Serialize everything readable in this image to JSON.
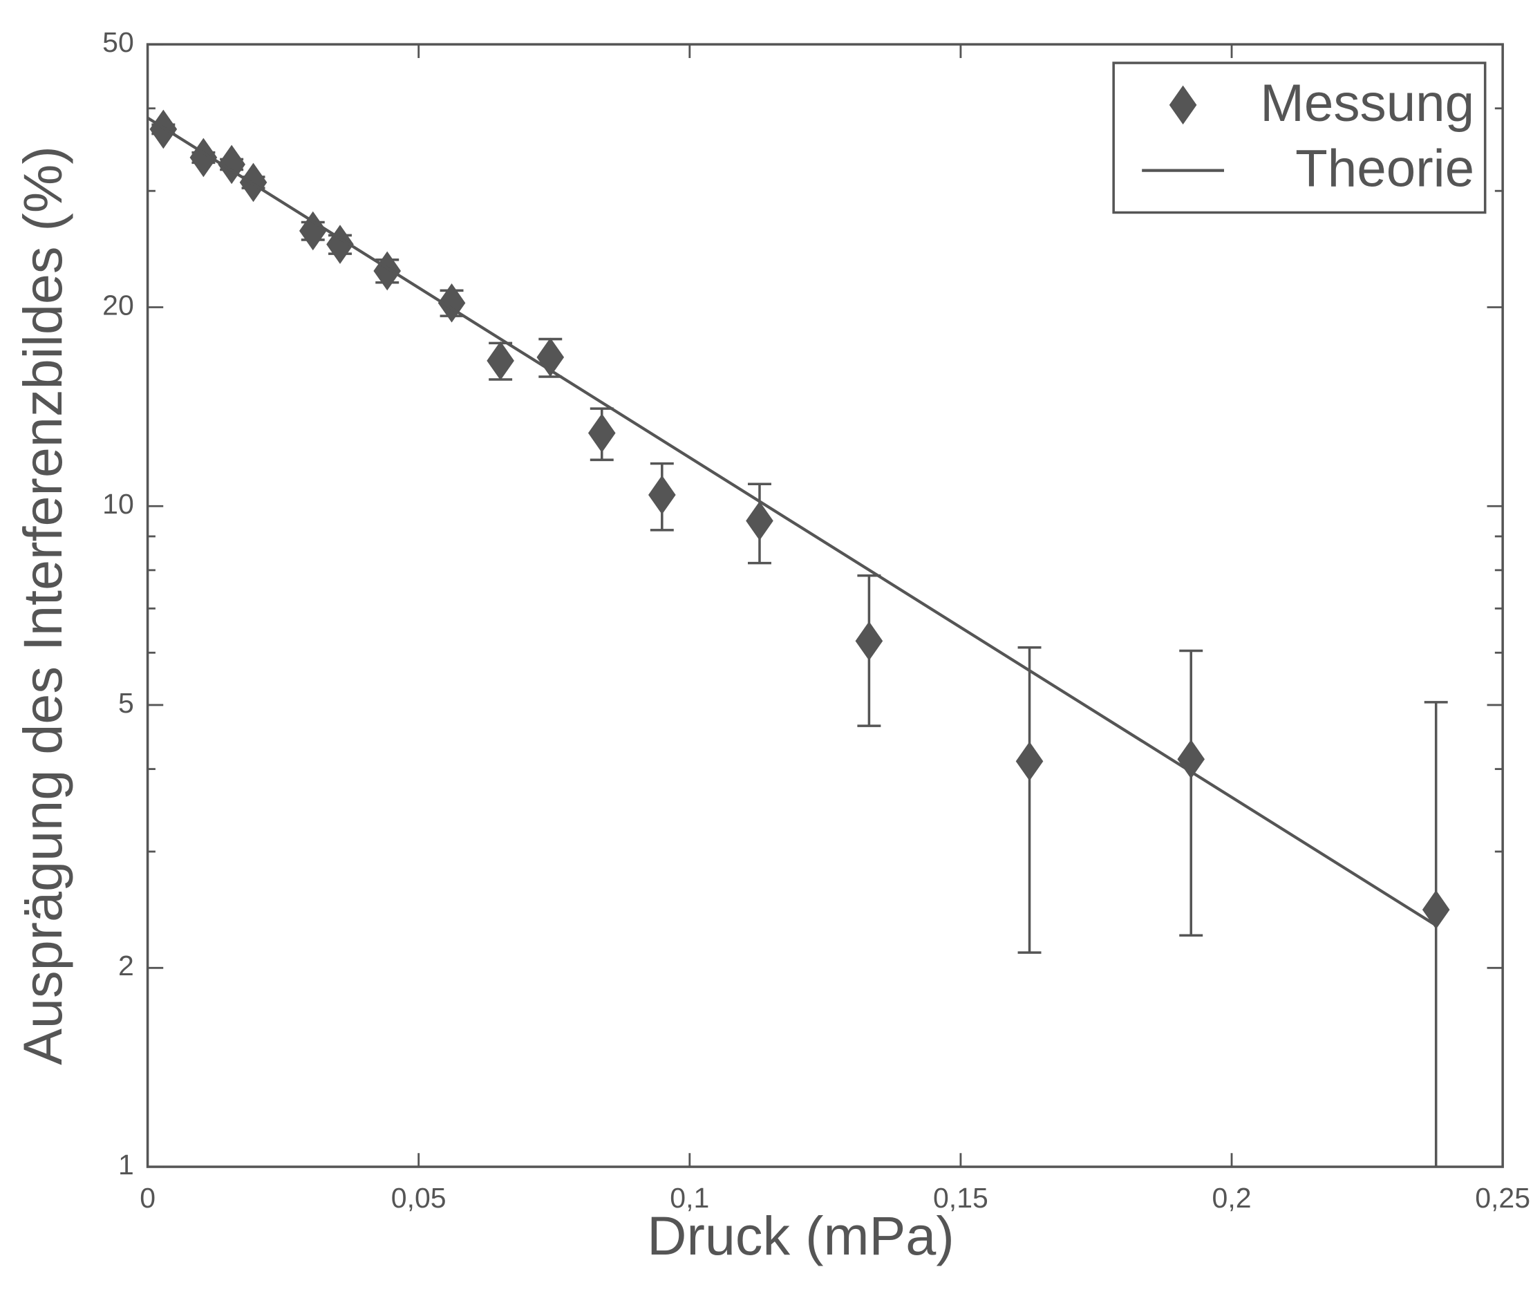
{
  "chart_data": {
    "type": "scatter",
    "xlabel": "Druck (mPa)",
    "ylabel": "Ausprägung des Interferenzbildes (%)",
    "xlim": [
      0,
      0.25
    ],
    "ylim": [
      1,
      50
    ],
    "yscale": "log",
    "xticks": [
      {
        "value": 0,
        "label": "0"
      },
      {
        "value": 0.05,
        "label": "0,05"
      },
      {
        "value": 0.1,
        "label": "0,1"
      },
      {
        "value": 0.15,
        "label": "0,15"
      },
      {
        "value": 0.2,
        "label": "0,2"
      },
      {
        "value": 0.25,
        "label": "0,25"
      }
    ],
    "yticks": [
      1,
      2,
      5,
      10,
      20,
      50
    ],
    "yminorticks": [
      3,
      4,
      6,
      7,
      8,
      9,
      30,
      40
    ],
    "legend": "top-right",
    "series": [
      {
        "name": "Messung",
        "color": "#555555",
        "marker": "diamond",
        "x": [
          0.0029,
          0.0103,
          0.0155,
          0.0195,
          0.0305,
          0.0355,
          0.0442,
          0.0561,
          0.0651,
          0.0743,
          0.0838,
          0.0949,
          0.1129,
          0.1331,
          0.1627,
          0.1925,
          0.2377
        ],
        "values": [
          37.2,
          33.7,
          32.9,
          30.9,
          26.1,
          24.9,
          22.7,
          20.3,
          16.6,
          16.8,
          12.9,
          10.4,
          9.5,
          6.25,
          4.11,
          4.14,
          2.45
        ],
        "errors": [
          0.6,
          0.6,
          0.6,
          0.6,
          0.8,
          0.8,
          0.9,
          0.9,
          1.05,
          1.1,
          1.15,
          1.2,
          1.3,
          1.6,
          2.0,
          1.9,
          2.6
        ]
      },
      {
        "name": "Theorie",
        "color": "#555555",
        "type": "line",
        "x": [
          0,
          0.2377
        ],
        "values": [
          38.7,
          2.32
        ]
      }
    ]
  }
}
